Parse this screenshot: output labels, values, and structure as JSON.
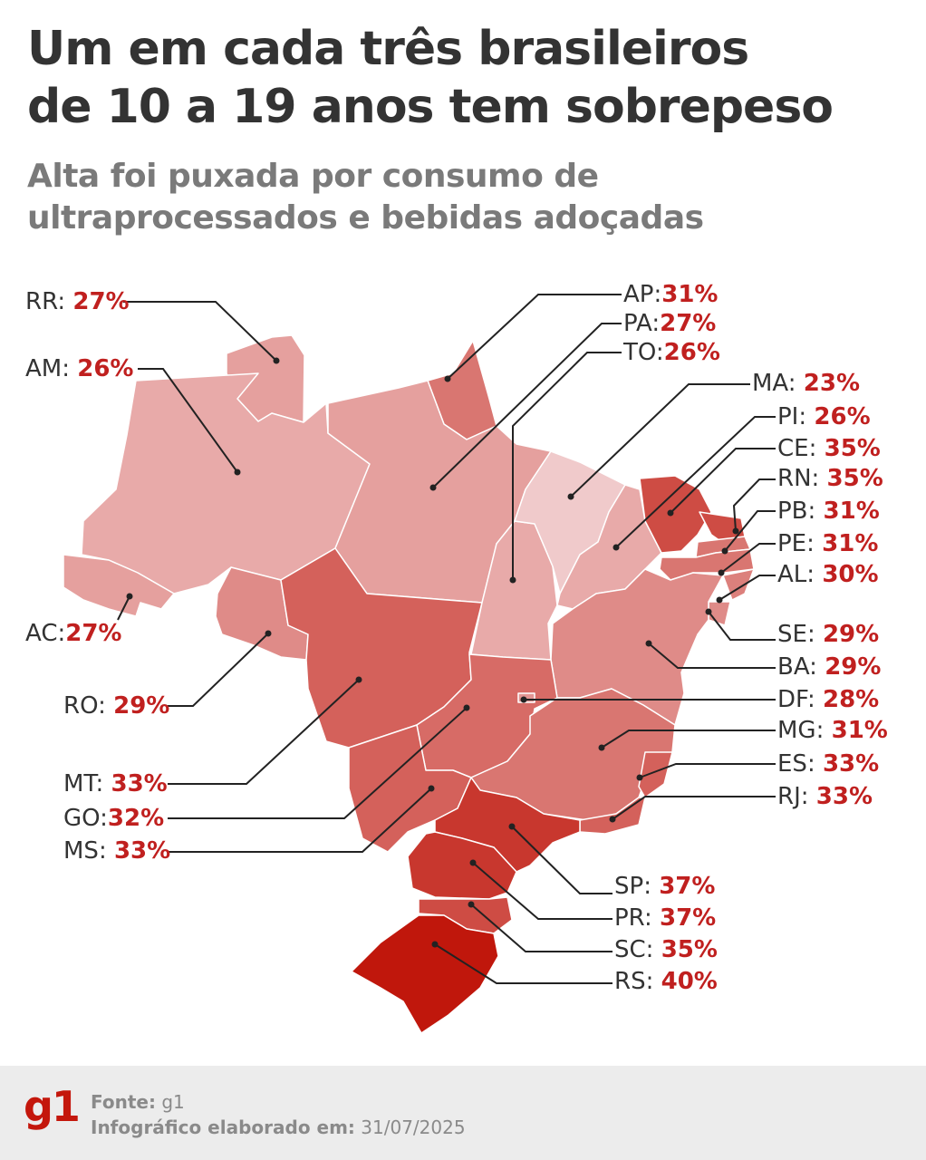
{
  "title": {
    "line1": "Um em cada três brasileiros",
    "line2": "de 10 a 19 anos tem sobrepeso"
  },
  "subtitle": {
    "line1": "Alta foi puxada por consumo de",
    "line2": "ultraprocessados e bebidas adoçadas"
  },
  "colors": {
    "value": "#c0201f",
    "title": "#333333",
    "subtitle": "#7a7a7a",
    "scale_low": "#f0cacb",
    "scale_high": "#c0170c"
  },
  "states": [
    {
      "code": "RR",
      "sep": ": ",
      "value": "27%",
      "pct": 27
    },
    {
      "code": "AM",
      "sep": ": ",
      "value": "26%",
      "pct": 26
    },
    {
      "code": "AC",
      "sep": ":",
      "value": "27%",
      "pct": 27
    },
    {
      "code": "RO",
      "sep": ": ",
      "value": "29%",
      "pct": 29
    },
    {
      "code": "MT",
      "sep": ": ",
      "value": "33%",
      "pct": 33
    },
    {
      "code": "GO",
      "sep": ":",
      "value": "32%",
      "pct": 32
    },
    {
      "code": "MS",
      "sep": ": ",
      "value": "33%",
      "pct": 33
    },
    {
      "code": "AP",
      "sep": ":",
      "value": "31%",
      "pct": 31
    },
    {
      "code": "PA",
      "sep": ":",
      "value": "27%",
      "pct": 27
    },
    {
      "code": "TO",
      "sep": ":",
      "value": "26%",
      "pct": 26
    },
    {
      "code": "MA",
      "sep": ": ",
      "value": "23%",
      "pct": 23
    },
    {
      "code": "PI",
      "sep": ": ",
      "value": "26%",
      "pct": 26
    },
    {
      "code": "CE",
      "sep": ": ",
      "value": "35%",
      "pct": 35
    },
    {
      "code": "RN",
      "sep": ": ",
      "value": "35%",
      "pct": 35
    },
    {
      "code": "PB",
      "sep": ": ",
      "value": "31%",
      "pct": 31
    },
    {
      "code": "PE",
      "sep": ": ",
      "value": "31%",
      "pct": 31
    },
    {
      "code": "AL",
      "sep": ": ",
      "value": "30%",
      "pct": 30
    },
    {
      "code": "SE",
      "sep": ": ",
      "value": "29%",
      "pct": 29
    },
    {
      "code": "BA",
      "sep": ": ",
      "value": "29%",
      "pct": 29
    },
    {
      "code": "DF",
      "sep": ": ",
      "value": "28%",
      "pct": 28
    },
    {
      "code": "MG",
      "sep": ": ",
      "value": "31%",
      "pct": 31
    },
    {
      "code": "ES",
      "sep": ": ",
      "value": "33%",
      "pct": 33
    },
    {
      "code": "RJ",
      "sep": ": ",
      "value": "33%",
      "pct": 33
    },
    {
      "code": "SP",
      "sep": ": ",
      "value": "37%",
      "pct": 37
    },
    {
      "code": "PR",
      "sep": ": ",
      "value": "37%",
      "pct": 37
    },
    {
      "code": "SC",
      "sep": ": ",
      "value": "35%",
      "pct": 35
    },
    {
      "code": "RS",
      "sep": ": ",
      "value": "40%",
      "pct": 40
    }
  ],
  "footer": {
    "logo": "g1",
    "source_label": "Fonte:",
    "source_value": "g1",
    "date_label": "Infográfico elaborado em:",
    "date_value": "31/07/2025"
  }
}
